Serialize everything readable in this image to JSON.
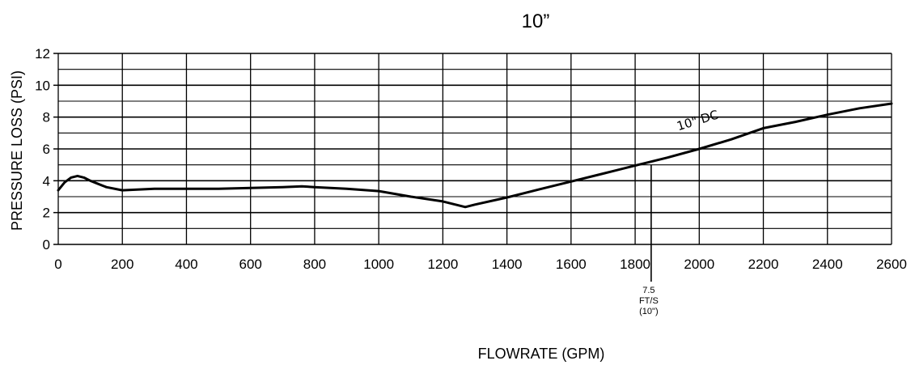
{
  "chart_data": {
    "type": "line",
    "title": "10”",
    "xlabel": "FLOWRATE (GPM)",
    "ylabel": "PRESSURE LOSS (PSI)",
    "xlim": [
      0,
      2600
    ],
    "ylim": [
      0,
      12
    ],
    "x_ticks": [
      "0",
      "200",
      "400",
      "600",
      "800",
      "1000",
      "1200",
      "1400",
      "1600",
      "1800",
      "2000",
      "2200",
      "2400",
      "2600"
    ],
    "y_ticks": [
      "0",
      "2",
      "4",
      "6",
      "8",
      "10",
      "12"
    ],
    "grid": true,
    "series": [
      {
        "name": "10\" DC",
        "x": [
          0,
          20,
          40,
          60,
          80,
          100,
          150,
          200,
          300,
          400,
          500,
          600,
          700,
          760,
          800,
          900,
          1000,
          1100,
          1200,
          1270,
          1300,
          1400,
          1500,
          1600,
          1700,
          1800,
          1900,
          2000,
          2100,
          2200,
          2300,
          2400,
          2500,
          2600
        ],
        "y": [
          3.4,
          3.9,
          4.2,
          4.3,
          4.2,
          4.0,
          3.6,
          3.4,
          3.5,
          3.5,
          3.5,
          3.55,
          3.6,
          3.65,
          3.6,
          3.5,
          3.35,
          3.0,
          2.7,
          2.35,
          2.5,
          2.95,
          3.45,
          3.95,
          4.45,
          4.95,
          5.45,
          6.0,
          6.6,
          7.3,
          7.7,
          8.15,
          8.55,
          8.85
        ]
      }
    ],
    "annotations": [
      {
        "text_lines": [
          "7.5",
          "FT/S",
          "(10\")"
        ],
        "x": 1850
      }
    ]
  }
}
